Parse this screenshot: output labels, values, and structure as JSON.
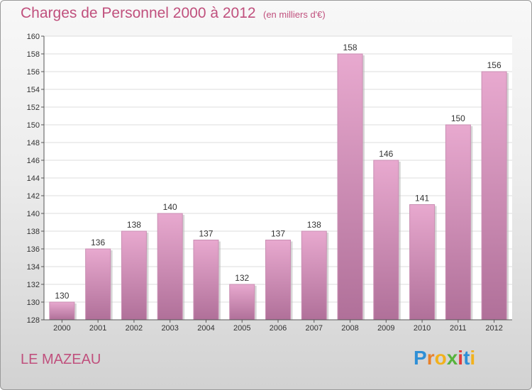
{
  "title": "Charges de Personnel 2000 à 2012",
  "unit_note": "(en milliers d'€)",
  "commune": "LE MAZEAU",
  "logo": {
    "letters": [
      "P",
      "r",
      "o",
      "x",
      "i",
      "t",
      "i"
    ],
    "colors": [
      "#2e8fd6",
      "#e8812a",
      "#f2b11c",
      "#58b33d",
      "#e23b3b",
      "#2e8fd6",
      "#f2b11c"
    ]
  },
  "colors": {
    "bar_top": "#e8a9cf",
    "bar_bottom": "#b07099",
    "accent": "#c0507d"
  },
  "chart_data": {
    "type": "bar",
    "categories": [
      "2000",
      "2001",
      "2002",
      "2003",
      "2004",
      "2005",
      "2006",
      "2007",
      "2008",
      "2009",
      "2010",
      "2011",
      "2012"
    ],
    "values": [
      130,
      136,
      138,
      140,
      137,
      132,
      137,
      138,
      158,
      146,
      141,
      150,
      156
    ],
    "ylim": [
      128,
      160
    ],
    "yticks": [
      128,
      130,
      132,
      134,
      136,
      138,
      140,
      142,
      144,
      146,
      148,
      150,
      152,
      154,
      156,
      158,
      160
    ],
    "grid": true,
    "xlabel": "",
    "ylabel": ""
  }
}
